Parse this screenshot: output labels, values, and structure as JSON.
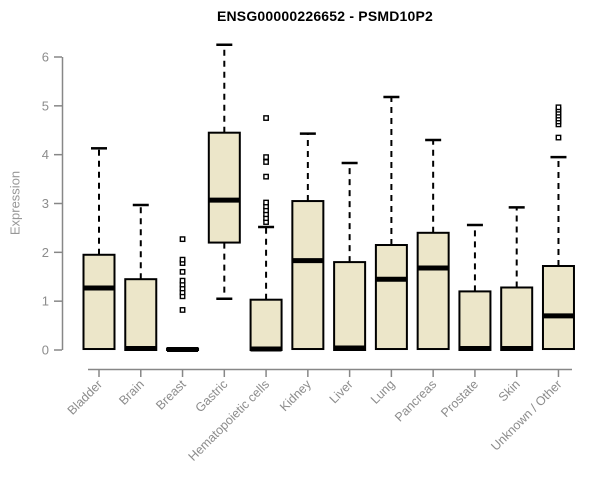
{
  "chart_data": {
    "type": "boxplot",
    "title": "ENSG00000226652 - PSMD10P2",
    "xlabel": "",
    "ylabel": "Expression",
    "ylim": [
      0,
      6.4
    ],
    "yticks": [
      0,
      1,
      2,
      3,
      4,
      5,
      6
    ],
    "grid": false,
    "legend": "none",
    "categories": [
      "Bladder",
      "Brain",
      "Breast",
      "Gastric",
      "Hematopoietic cells",
      "Kidney",
      "Liver",
      "Lung",
      "Pancreas",
      "Prostate",
      "Skin",
      "Unknown / Other"
    ],
    "series": [
      {
        "name": "Bladder",
        "whisker_low": 0.02,
        "q1": 0.02,
        "median": 1.27,
        "q3": 1.95,
        "whisker_high": 4.13,
        "outliers": []
      },
      {
        "name": "Brain",
        "whisker_low": 0.0,
        "q1": 0.0,
        "median": 0.03,
        "q3": 1.45,
        "whisker_high": 2.97,
        "outliers": []
      },
      {
        "name": "Breast",
        "whisker_low": 0.0,
        "q1": 0.0,
        "median": 0.01,
        "q3": 0.03,
        "whisker_high": 0.03,
        "outliers": [
          0.82,
          1.1,
          1.18,
          1.26,
          1.34,
          1.42,
          1.6,
          1.78,
          1.85,
          2.27
        ]
      },
      {
        "name": "Gastric",
        "whisker_low": 1.05,
        "q1": 2.2,
        "median": 3.07,
        "q3": 4.45,
        "whisker_high": 6.25,
        "outliers": []
      },
      {
        "name": "Hematopoietic cells",
        "whisker_low": 0.0,
        "q1": 0.0,
        "median": 0.02,
        "q3": 1.03,
        "whisker_high": 2.52,
        "outliers": [
          2.62,
          2.7,
          2.78,
          2.86,
          2.94,
          3.02,
          3.55,
          3.85,
          3.95,
          4.75
        ]
      },
      {
        "name": "Kidney",
        "whisker_low": 0.02,
        "q1": 0.02,
        "median": 1.83,
        "q3": 3.05,
        "whisker_high": 4.43,
        "outliers": []
      },
      {
        "name": "Liver",
        "whisker_low": 0.0,
        "q1": 0.0,
        "median": 0.04,
        "q3": 1.8,
        "whisker_high": 3.83,
        "outliers": []
      },
      {
        "name": "Lung",
        "whisker_low": 0.02,
        "q1": 0.02,
        "median": 1.45,
        "q3": 2.15,
        "whisker_high": 5.18,
        "outliers": []
      },
      {
        "name": "Pancreas",
        "whisker_low": 0.02,
        "q1": 0.02,
        "median": 1.68,
        "q3": 2.4,
        "whisker_high": 4.3,
        "outliers": []
      },
      {
        "name": "Prostate",
        "whisker_low": 0.0,
        "q1": 0.0,
        "median": 0.03,
        "q3": 1.2,
        "whisker_high": 2.56,
        "outliers": []
      },
      {
        "name": "Skin",
        "whisker_low": 0.0,
        "q1": 0.0,
        "median": 0.03,
        "q3": 1.28,
        "whisker_high": 2.92,
        "outliers": []
      },
      {
        "name": "Unknown / Other",
        "whisker_low": 0.02,
        "q1": 0.02,
        "median": 0.7,
        "q3": 1.72,
        "whisker_high": 3.95,
        "outliers": [
          4.35,
          4.62,
          4.68,
          4.74,
          4.8,
          4.86,
          4.92,
          4.97
        ]
      }
    ],
    "colors": {
      "box_fill": "#ece6c9",
      "box_stroke": "#000000",
      "median": "#000000",
      "whisker": "#000000",
      "axis": "#878787",
      "tick_label": "#8c8c8c",
      "title": "#000000",
      "ylabel": "#979797",
      "background": "#ffffff"
    }
  }
}
